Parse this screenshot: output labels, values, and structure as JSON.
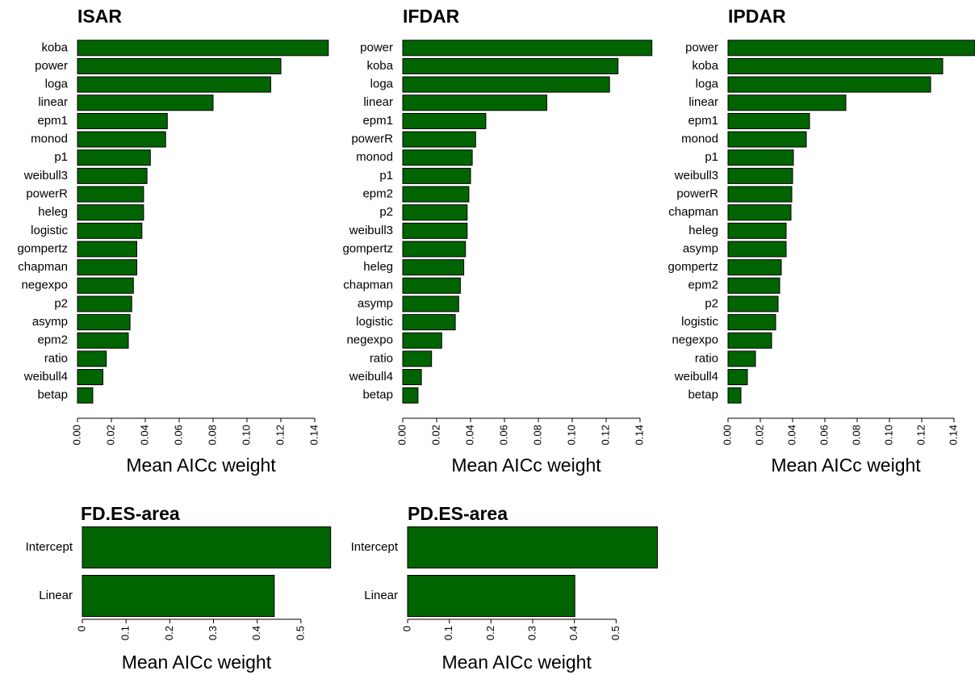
{
  "chart_data": [
    {
      "type": "bar",
      "orientation": "horizontal",
      "title": "ISAR",
      "x_label": "Mean AICc weight",
      "color": "#006400",
      "categories": [
        "koba",
        "power",
        "loga",
        "linear",
        "epm1",
        "monod",
        "p1",
        "weibull3",
        "powerR",
        "heleg",
        "logistic",
        "gompertz",
        "chapman",
        "negexpo",
        "p2",
        "asymp",
        "epm2",
        "ratio",
        "weibull4",
        "betap"
      ],
      "values": [
        0.148,
        0.12,
        0.114,
        0.08,
        0.053,
        0.052,
        0.043,
        0.041,
        0.039,
        0.039,
        0.038,
        0.035,
        0.035,
        0.033,
        0.032,
        0.031,
        0.03,
        0.017,
        0.015,
        0.009
      ],
      "xlim": [
        0,
        0.15
      ],
      "xticks": [
        {
          "value": 0,
          "label": "0.00"
        },
        {
          "value": 0.02,
          "label": "0.02"
        },
        {
          "value": 0.04,
          "label": "0.04"
        },
        {
          "value": 0.06,
          "label": "0.06"
        },
        {
          "value": 0.08,
          "label": "0.08"
        },
        {
          "value": 0.1,
          "label": "0.10"
        },
        {
          "value": 0.12,
          "label": "0.12"
        },
        {
          "value": 0.14,
          "label": "0.14"
        }
      ]
    },
    {
      "type": "bar",
      "orientation": "horizontal",
      "title": "IFDAR",
      "x_label": "Mean AICc weight",
      "color": "#006400",
      "categories": [
        "power",
        "koba",
        "loga",
        "linear",
        "epm1",
        "powerR",
        "monod",
        "p1",
        "epm2",
        "p2",
        "weibull3",
        "gompertz",
        "heleg",
        "chapman",
        "asymp",
        "logistic",
        "negexpo",
        "ratio",
        "weibull4",
        "betap"
      ],
      "values": [
        0.147,
        0.127,
        0.122,
        0.085,
        0.049,
        0.043,
        0.041,
        0.04,
        0.039,
        0.038,
        0.038,
        0.037,
        0.036,
        0.034,
        0.033,
        0.031,
        0.023,
        0.017,
        0.011,
        0.009
      ],
      "xlim": [
        0,
        0.15
      ],
      "xticks": [
        {
          "value": 0,
          "label": "0.00"
        },
        {
          "value": 0.02,
          "label": "0.02"
        },
        {
          "value": 0.04,
          "label": "0.04"
        },
        {
          "value": 0.06,
          "label": "0.06"
        },
        {
          "value": 0.08,
          "label": "0.08"
        },
        {
          "value": 0.1,
          "label": "0.10"
        },
        {
          "value": 0.12,
          "label": "0.12"
        },
        {
          "value": 0.14,
          "label": "0.14"
        }
      ]
    },
    {
      "type": "bar",
      "orientation": "horizontal",
      "title": "IPDAR",
      "x_label": "Mean AICc weight",
      "color": "#006400",
      "categories": [
        "power",
        "koba",
        "loga",
        "linear",
        "epm1",
        "monod",
        "p1",
        "weibull3",
        "powerR",
        "chapman",
        "heleg",
        "asymp",
        "gompertz",
        "epm2",
        "p2",
        "logistic",
        "negexpo",
        "ratio",
        "weibull4",
        "betap"
      ],
      "values": [
        0.153,
        0.133,
        0.1255,
        0.073,
        0.0505,
        0.0485,
        0.0405,
        0.04,
        0.0395,
        0.039,
        0.036,
        0.036,
        0.033,
        0.032,
        0.031,
        0.0295,
        0.027,
        0.017,
        0.012,
        0.008
      ],
      "xlim": [
        0,
        0.15
      ],
      "xticks": [
        {
          "value": 0,
          "label": "0.00"
        },
        {
          "value": 0.02,
          "label": "0.02"
        },
        {
          "value": 0.04,
          "label": "0.04"
        },
        {
          "value": 0.06,
          "label": "0.06"
        },
        {
          "value": 0.08,
          "label": "0.08"
        },
        {
          "value": 0.1,
          "label": "0.10"
        },
        {
          "value": 0.12,
          "label": "0.12"
        },
        {
          "value": 0.14,
          "label": "0.14"
        }
      ]
    },
    {
      "type": "bar",
      "orientation": "horizontal",
      "title": "FD.ES-area",
      "x_label": "Mean AICc weight",
      "color": "#006400",
      "categories": [
        "Intercept",
        "Linear"
      ],
      "values": [
        0.568,
        0.439
      ],
      "xlim": [
        0,
        0.6
      ],
      "xticks": [
        0,
        0.1,
        0.2,
        0.3,
        0.4,
        0.5
      ]
    },
    {
      "type": "bar",
      "orientation": "horizontal",
      "title": "PD.ES-area",
      "x_label": "Mean AICc weight",
      "color": "#006400",
      "categories": [
        "Intercept",
        "Linear"
      ],
      "values": [
        0.599,
        0.401
      ],
      "xlim": [
        0,
        0.6
      ],
      "xticks": [
        0,
        0.1,
        0.2,
        0.3,
        0.4,
        0.5
      ]
    }
  ]
}
